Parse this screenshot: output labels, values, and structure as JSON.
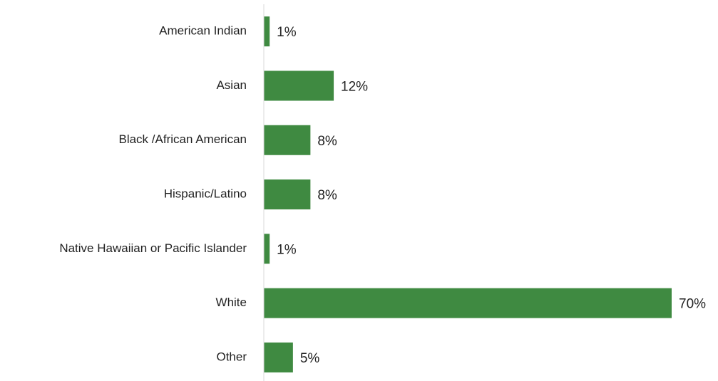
{
  "chart_data": {
    "type": "bar",
    "orientation": "horizontal",
    "categories": [
      "American Indian",
      "Asian",
      "Black /African American",
      "Hispanic/Latino",
      "Native Hawaiian or Pacific Islander",
      "White",
      "Other"
    ],
    "values": [
      1,
      12,
      8,
      8,
      1,
      70,
      5
    ],
    "value_labels": [
      "1%",
      "12%",
      "8%",
      "8%",
      "1%",
      "70%",
      "5%"
    ],
    "color": "#3f8a41"
  }
}
